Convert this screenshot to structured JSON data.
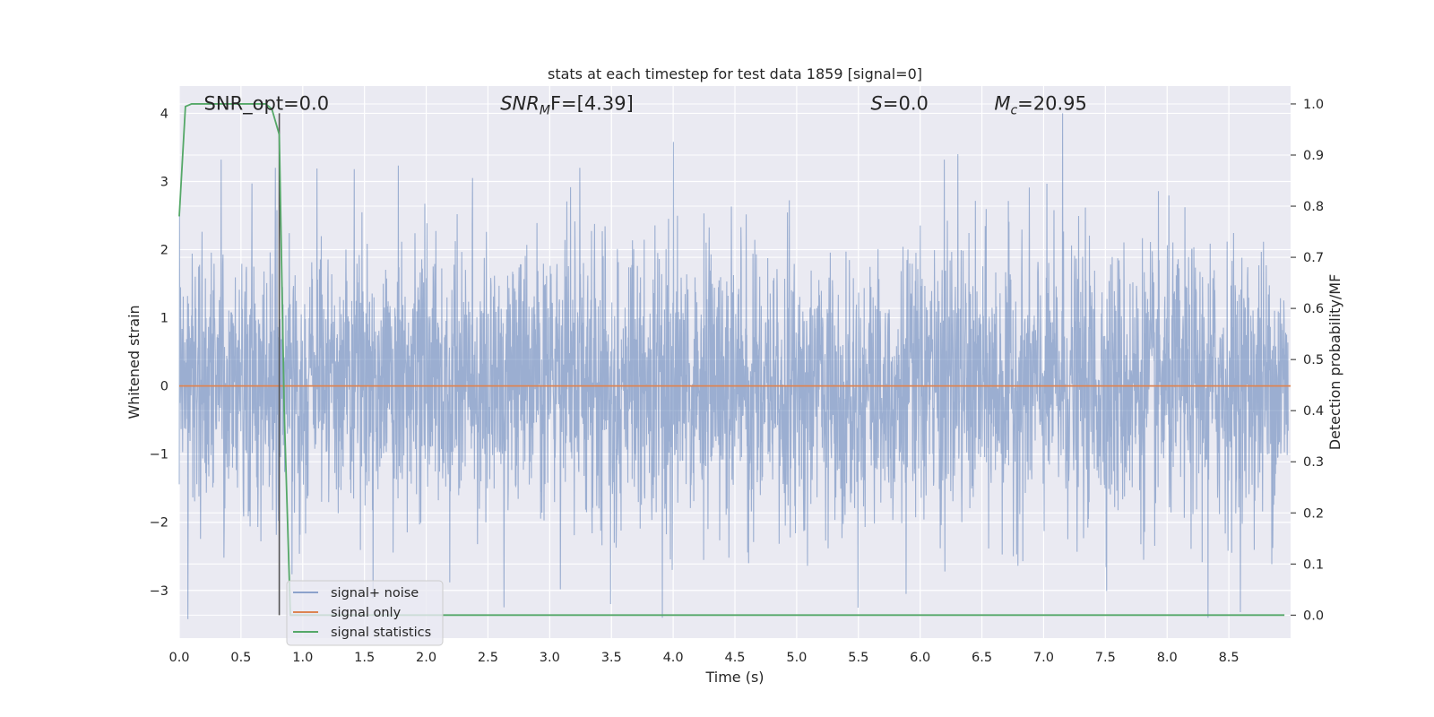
{
  "chart_data": {
    "type": "line",
    "title": "stats at each timestep for test data 1859 [signal=0]",
    "xlabel": "Time (s)",
    "ylabel": "Whitened strain",
    "ylabel_right": "Detection probability/MF",
    "xlim": [
      0.0,
      9.0
    ],
    "ylim": [
      -3.7,
      4.4
    ],
    "ylim_right": [
      -0.045,
      1.035
    ],
    "xticks": [
      "0.0",
      "0.5",
      "1.0",
      "1.5",
      "2.0",
      "2.5",
      "3.0",
      "3.5",
      "4.0",
      "4.5",
      "5.0",
      "5.5",
      "6.0",
      "6.5",
      "7.0",
      "7.5",
      "8.0",
      "8.5"
    ],
    "yticks": [
      "−3",
      "−2",
      "−1",
      "0",
      "1",
      "2",
      "3",
      "4"
    ],
    "yticks_right": [
      "0.0",
      "0.1",
      "0.2",
      "0.3",
      "0.4",
      "0.5",
      "0.6",
      "0.7",
      "0.8",
      "0.9",
      "1.0"
    ],
    "grid": true,
    "legend_position": "lower-left",
    "annotations": [
      {
        "label": "SNR_opt=0.0",
        "x": 0.2,
        "y": 4.05
      },
      {
        "label": "SNR",
        "sub": "M",
        "rest": "F=[4.39]",
        "italic": true,
        "x": 2.6,
        "y": 4.05
      },
      {
        "label": "S",
        "rest": "=0.0",
        "italic": true,
        "x": 5.6,
        "y": 4.05
      },
      {
        "label": "M",
        "sub": "c",
        "rest": "=20.95",
        "italic": true,
        "x": 6.6,
        "y": 4.05
      }
    ],
    "vline_x": 0.81,
    "series": [
      {
        "name": "signal+ noise",
        "color": "#4c72b0",
        "axis": "left",
        "style": "noise",
        "samples": 3600,
        "sigma": 1.0,
        "y_min": -3.4,
        "y_max": 4.0,
        "peaks": [
          [
            0.34,
            3.32
          ],
          [
            0.78,
            3.2
          ],
          [
            1.42,
            3.18
          ],
          [
            2.38,
            3.05
          ],
          [
            3.25,
            3.2
          ],
          [
            4.01,
            3.58
          ],
          [
            6.21,
            3.32
          ],
          [
            6.32,
            3.4
          ],
          [
            7.17,
            4.0
          ],
          [
            8.35,
            -3.4
          ],
          [
            0.07,
            -3.42
          ],
          [
            3.5,
            -3.2
          ],
          [
            5.9,
            -3.05
          ]
        ]
      },
      {
        "name": "signal only",
        "color": "#dd8452",
        "axis": "left",
        "points": [
          [
            0.0,
            0.0
          ],
          [
            9.0,
            0.0
          ]
        ]
      },
      {
        "name": "signal statistics",
        "color": "#55a868",
        "axis": "right",
        "points": [
          [
            0.0,
            0.78
          ],
          [
            0.05,
            0.995
          ],
          [
            0.1,
            1.0
          ],
          [
            0.3,
            1.0
          ],
          [
            0.5,
            1.0
          ],
          [
            0.7,
            1.0
          ],
          [
            0.75,
            0.99
          ],
          [
            0.81,
            0.94
          ],
          [
            0.85,
            0.4
          ],
          [
            0.9,
            0.0
          ],
          [
            1.0,
            0.0
          ],
          [
            2.0,
            0.0
          ],
          [
            4.0,
            0.0
          ],
          [
            6.0,
            0.0
          ],
          [
            8.0,
            0.0
          ],
          [
            8.95,
            0.0
          ]
        ]
      }
    ]
  },
  "colors": {
    "plot_background": "#eaeaf2",
    "grid": "#ffffff",
    "vline": "#555555"
  }
}
